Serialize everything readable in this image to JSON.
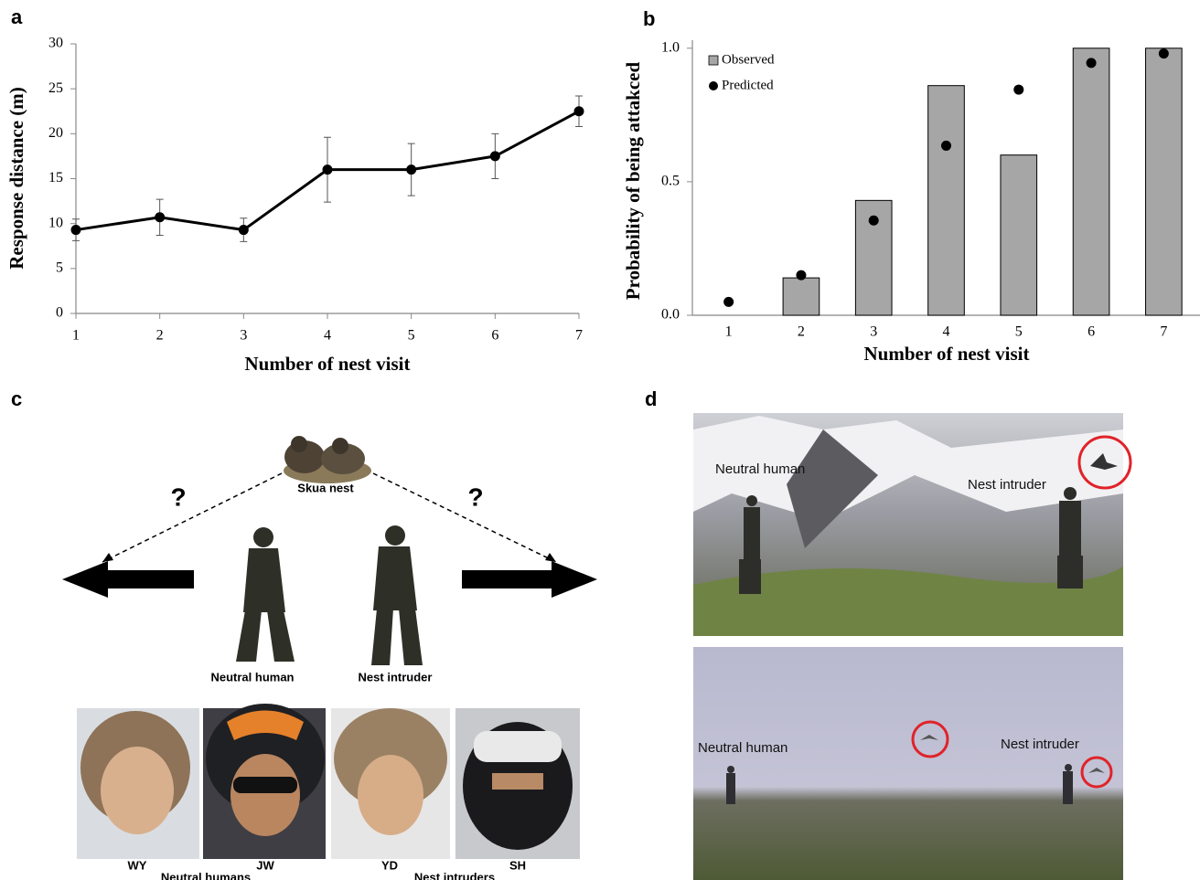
{
  "chart_data": [
    {
      "type": "line",
      "panel_label": "a",
      "x_label": "Number of nest visit",
      "y_label": "Response distance (m)",
      "x": [
        1,
        2,
        3,
        4,
        5,
        6,
        7
      ],
      "series": [
        {
          "color": "#000000",
          "values": [
            9.3,
            10.7,
            9.3,
            16,
            16,
            17.5,
            22.5
          ],
          "errors": [
            1.2,
            2,
            1.3,
            3.6,
            2.9,
            2.5,
            1.7
          ]
        }
      ],
      "xlim": [
        1,
        7
      ],
      "xticks": [
        1,
        2,
        3,
        4,
        5,
        6,
        7
      ],
      "ylim": [
        0,
        30
      ],
      "yticks": [
        0,
        5,
        10,
        15,
        20,
        25,
        30
      ]
    },
    {
      "type": "bar",
      "panel_label": "b",
      "x_label": "Number of nest visit",
      "y_label": "Probability of being attakced",
      "categories": [
        "1",
        "2",
        "3",
        "4",
        "5",
        "6",
        "7"
      ],
      "series": [
        {
          "name": "Observed",
          "kind": "bar",
          "color": "#a6a6a6",
          "values": [
            0,
            0.14,
            0.43,
            0.86,
            0.6,
            1.0,
            1.0
          ]
        },
        {
          "name": "Predicted",
          "kind": "scatter",
          "color": "#000000",
          "values": [
            0.05,
            0.15,
            0.355,
            0.635,
            0.845,
            0.945,
            0.98
          ]
        }
      ],
      "ylim": [
        0,
        1.03
      ],
      "yticks": [
        {
          "value": 0,
          "label": "0.0"
        },
        {
          "value": 0.5,
          "label": "0.5"
        },
        {
          "value": 1,
          "label": "1.0"
        }
      ],
      "legend": "upper left"
    }
  ],
  "panel_c": {
    "label": "c",
    "question_marks": [
      "?",
      "?"
    ],
    "nest_label": "Skua nest",
    "figures": [
      "Neutral human",
      "Nest intruder"
    ],
    "faces": [
      "WY",
      "JW",
      "YD",
      "SH"
    ],
    "groups": [
      "Neutral humans",
      "Nest intruders"
    ]
  },
  "panel_d": {
    "label": "d",
    "photos": [
      {
        "labels": [
          "Neutral human",
          "Nest intruder"
        ]
      },
      {
        "labels": [
          "Neutral human",
          "Nest intruder"
        ]
      }
    ]
  }
}
